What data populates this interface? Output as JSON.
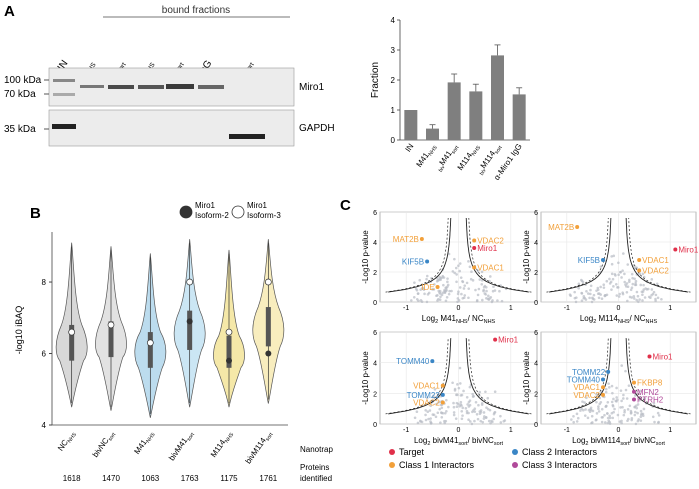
{
  "panels": {
    "a": "A",
    "b": "B",
    "c": "C"
  },
  "panel_a": {
    "bound_fractions_label": "bound fractions",
    "lane_labels": [
      {
        "main": "IN",
        "sub": "",
        "pre": ""
      },
      {
        "main": "M41",
        "sub": "NHS",
        "pre": ""
      },
      {
        "main": "M41",
        "sub": "sort",
        "pre": "biv"
      },
      {
        "main": "M114",
        "sub": "NHS",
        "pre": ""
      },
      {
        "main": "M114",
        "sub": "sort",
        "pre": "biv"
      },
      {
        "main": "α-Miro1 IgG",
        "sub": "",
        "pre": ""
      },
      {
        "main": "NC",
        "sub": "sort",
        "pre": "biv"
      }
    ],
    "mw_markers": [
      "100 kDa",
      "70 kDa",
      "35 kDa"
    ],
    "blot_labels": [
      "Miro1",
      "GAPDH"
    ]
  },
  "chart_data": [
    {
      "type": "bar",
      "ylabel": "Fraction",
      "ylim": [
        0,
        4
      ],
      "yticks": [
        0,
        1,
        2,
        3,
        4
      ],
      "categories": [
        {
          "main": "IN",
          "sub": "",
          "pre": ""
        },
        {
          "main": "M41",
          "sub": "NHS",
          "pre": ""
        },
        {
          "main": "M41",
          "sub": "sort",
          "pre": "biv"
        },
        {
          "main": "M114",
          "sub": "NHS",
          "pre": ""
        },
        {
          "main": "M114",
          "sub": "sort",
          "pre": "biv"
        },
        {
          "main": "α-Miro1 IgG",
          "sub": "",
          "pre": ""
        }
      ],
      "values": [
        1.0,
        0.38,
        1.92,
        1.62,
        2.82,
        1.52
      ],
      "errors": [
        0,
        0.13,
        0.28,
        0.24,
        0.35,
        0.22
      ]
    },
    {
      "type": "violin",
      "ylabel": "-log10 iBAQ",
      "ylim": [
        4,
        9.2
      ],
      "yticks": [
        4,
        6,
        8
      ],
      "legend": [
        {
          "label_line1": "Miro1",
          "label_line2": "Isoform-2",
          "fill": "#333333"
        },
        {
          "label_line1": "Miro1",
          "label_line2": "Isoform-3",
          "fill": "#ffffff"
        }
      ],
      "categories": [
        {
          "main": "NC",
          "sub": "NHS",
          "pre": ""
        },
        {
          "main": "bivNC",
          "sub": "sort",
          "pre": ""
        },
        {
          "main": "M41",
          "sub": "NHS",
          "pre": ""
        },
        {
          "main": "bivM41",
          "sub": "sort",
          "pre": ""
        },
        {
          "main": "M114",
          "sub": "NHS",
          "pre": ""
        },
        {
          "main": "bivM114",
          "sub": "sort",
          "pre": ""
        }
      ],
      "colors": [
        "#d8d8d8",
        "#e2e2e2",
        "#bcdcee",
        "#cbe6f4",
        "#f5e8a8",
        "#f8edbe"
      ],
      "median": [
        6.2,
        6.3,
        6.1,
        6.6,
        6.0,
        6.7
      ],
      "q1": [
        5.8,
        5.9,
        5.6,
        6.1,
        5.6,
        6.2
      ],
      "q3": [
        6.8,
        6.9,
        6.6,
        7.2,
        6.5,
        7.3
      ],
      "min": [
        4.5,
        4.4,
        4.2,
        4.5,
        4.5,
        4.6
      ],
      "max": [
        9.1,
        9.0,
        8.8,
        9.2,
        8.9,
        9.2
      ],
      "isoform2": [
        null,
        null,
        null,
        6.9,
        5.8,
        6.0
      ],
      "isoform3": [
        6.6,
        6.8,
        6.3,
        8.0,
        6.6,
        8.0
      ],
      "row_labels": [
        "Nanotrap",
        "Proteins identified"
      ],
      "proteins_identified": [
        "1618",
        "1470",
        "1063",
        "1763",
        "1175",
        "1761"
      ]
    },
    {
      "type": "scatter",
      "xlim": [
        -1.5,
        1.5
      ],
      "ylim": [
        0,
        6
      ],
      "yticks": [
        0,
        2,
        4,
        6
      ],
      "legend": [
        {
          "label": "Target",
          "color": "#e0304a"
        },
        {
          "label": "Class 1 Interactors",
          "color": "#f2a03a"
        },
        {
          "label": "Class 2 Interactors",
          "color": "#3a86c6"
        },
        {
          "label": "Class 3 Interactors",
          "color": "#b04a9a"
        }
      ],
      "subplots": [
        {
          "xlabel": {
            "pre": "Log",
            "sub1": "2",
            "mid": " M41",
            "sub2": "NHS",
            "mid2": "/ NC",
            "sub3": "NHS"
          },
          "ylabel": "-Log10 p-value",
          "xticks": [
            -1,
            0,
            1
          ],
          "points": [
            {
              "label": "MAT2B",
              "x": -0.7,
              "y": 4.2,
              "cls": 1
            },
            {
              "label": "VDAC2",
              "x": 0.3,
              "y": 4.1,
              "cls": 1
            },
            {
              "label": "Miro1",
              "x": 0.3,
              "y": 3.6,
              "cls": 0
            },
            {
              "label": "KIF5B",
              "x": -0.6,
              "y": 2.7,
              "cls": 2
            },
            {
              "label": "VDAC1",
              "x": 0.3,
              "y": 2.3,
              "cls": 1
            },
            {
              "label": "IDE",
              "x": -0.4,
              "y": 1.0,
              "cls": 1
            }
          ]
        },
        {
          "xlabel": {
            "pre": "Log",
            "sub1": "2",
            "mid": " M114",
            "sub2": "NHS",
            "mid2": "/ NC",
            "sub3": "NHS"
          },
          "ylabel": "-Log10 p-value",
          "xticks": [
            -1,
            0,
            1
          ],
          "points": [
            {
              "label": "MAT2B",
              "x": -0.8,
              "y": 5.0,
              "cls": 1
            },
            {
              "label": "Miro1",
              "x": 1.1,
              "y": 3.5,
              "cls": 0
            },
            {
              "label": "KIF5B",
              "x": -0.3,
              "y": 2.8,
              "cls": 2
            },
            {
              "label": "VDAC1",
              "x": 0.4,
              "y": 2.8,
              "cls": 1
            },
            {
              "label": "VDAC2",
              "x": 0.4,
              "y": 2.1,
              "cls": 1
            }
          ]
        },
        {
          "xlabel": {
            "pre": "Log",
            "sub1": "2",
            "mid": " bivM41",
            "sub2": "sort",
            "mid2": "/ bivNC",
            "sub3": "sort"
          },
          "ylabel": "-Log10 p-value",
          "xticks": [
            -1,
            0,
            1
          ],
          "points": [
            {
              "label": "Miro1",
              "x": 0.7,
              "y": 5.5,
              "cls": 0
            },
            {
              "label": "TOMM40",
              "x": -0.5,
              "y": 4.1,
              "cls": 2
            },
            {
              "label": "VDAC1",
              "x": -0.3,
              "y": 2.5,
              "cls": 1
            },
            {
              "label": "TOMM22",
              "x": -0.3,
              "y": 1.9,
              "cls": 2
            },
            {
              "label": "VDAC2",
              "x": -0.3,
              "y": 1.4,
              "cls": 1
            }
          ]
        },
        {
          "xlabel": {
            "pre": "Log",
            "sub1": "2",
            "mid": " bivM114",
            "sub2": "sort",
            "mid2": "/ bivNC",
            "sub3": "sort"
          },
          "ylabel": "-Log10 p-value",
          "xticks": [
            -1,
            0,
            1
          ],
          "points": [
            {
              "label": "Miro1",
              "x": 0.6,
              "y": 4.4,
              "cls": 0
            },
            {
              "label": "TOMM22",
              "x": -0.2,
              "y": 3.4,
              "cls": 2
            },
            {
              "label": "TOMM40",
              "x": -0.3,
              "y": 2.9,
              "cls": 2
            },
            {
              "label": "FKBP8",
              "x": 0.3,
              "y": 2.7,
              "cls": 1
            },
            {
              "label": "VDAC1",
              "x": -0.3,
              "y": 2.4,
              "cls": 1
            },
            {
              "label": "MFN2",
              "x": 0.3,
              "y": 2.1,
              "cls": 3
            },
            {
              "label": "VDAC2",
              "x": -0.3,
              "y": 1.9,
              "cls": 1
            },
            {
              "label": "PTRH2",
              "x": 0.3,
              "y": 1.6,
              "cls": 3
            }
          ]
        }
      ]
    }
  ]
}
